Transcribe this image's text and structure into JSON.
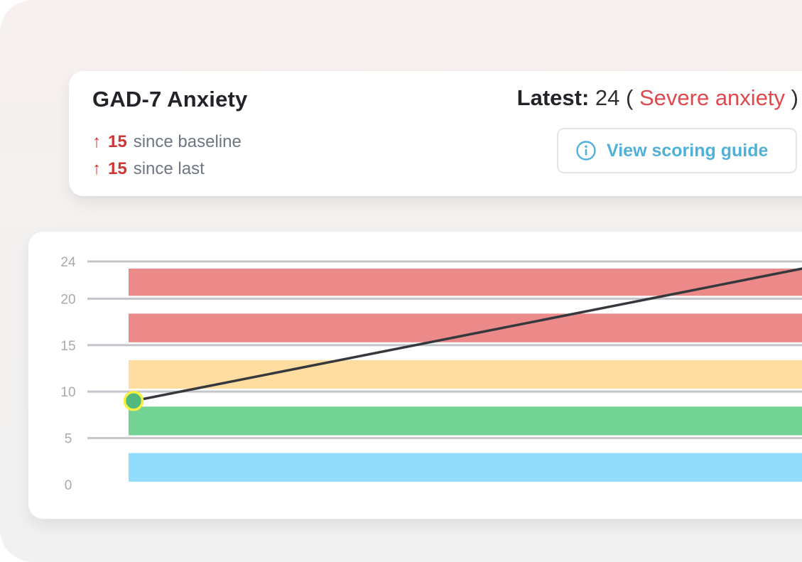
{
  "header": {
    "title": "GAD-7 Anxiety",
    "deltas": [
      {
        "arrow": "↑",
        "value": "15",
        "text": "since baseline"
      },
      {
        "arrow": "↑",
        "value": "15",
        "text": "since last"
      }
    ],
    "latest": {
      "label": "Latest:",
      "value": "24",
      "open_paren": "(",
      "severity": "Severe anxiety",
      "close_paren": ")"
    },
    "guide_button": {
      "label": "View scoring guide",
      "icon": "info-icon"
    }
  },
  "colors": {
    "severe": "#ec8a8a",
    "moderately_severe": "#ec8a8a",
    "moderate": "#ffdda1",
    "mild": "#72d394",
    "minimal": "#93ddfc",
    "line": "#35383d",
    "point_fill": "#52b97e",
    "point_ring": "#f7f040",
    "grid": "#c4c5ca",
    "tick": "#a7a9ae"
  },
  "chart_data": {
    "type": "line",
    "y_ticks": [
      0,
      5,
      10,
      15,
      20,
      24
    ],
    "ylim": [
      0,
      24
    ],
    "grid": true,
    "bands": [
      {
        "from": 0,
        "to": 4,
        "color_key": "minimal"
      },
      {
        "from": 5,
        "to": 9,
        "color_key": "mild"
      },
      {
        "from": 10,
        "to": 14,
        "color_key": "moderate"
      },
      {
        "from": 15,
        "to": 19,
        "color_key": "moderately_severe"
      },
      {
        "from": 20,
        "to": 24,
        "color_key": "severe"
      }
    ],
    "series": [
      {
        "values": [
          9,
          24
        ],
        "highlighted_point_index": 0
      }
    ]
  }
}
